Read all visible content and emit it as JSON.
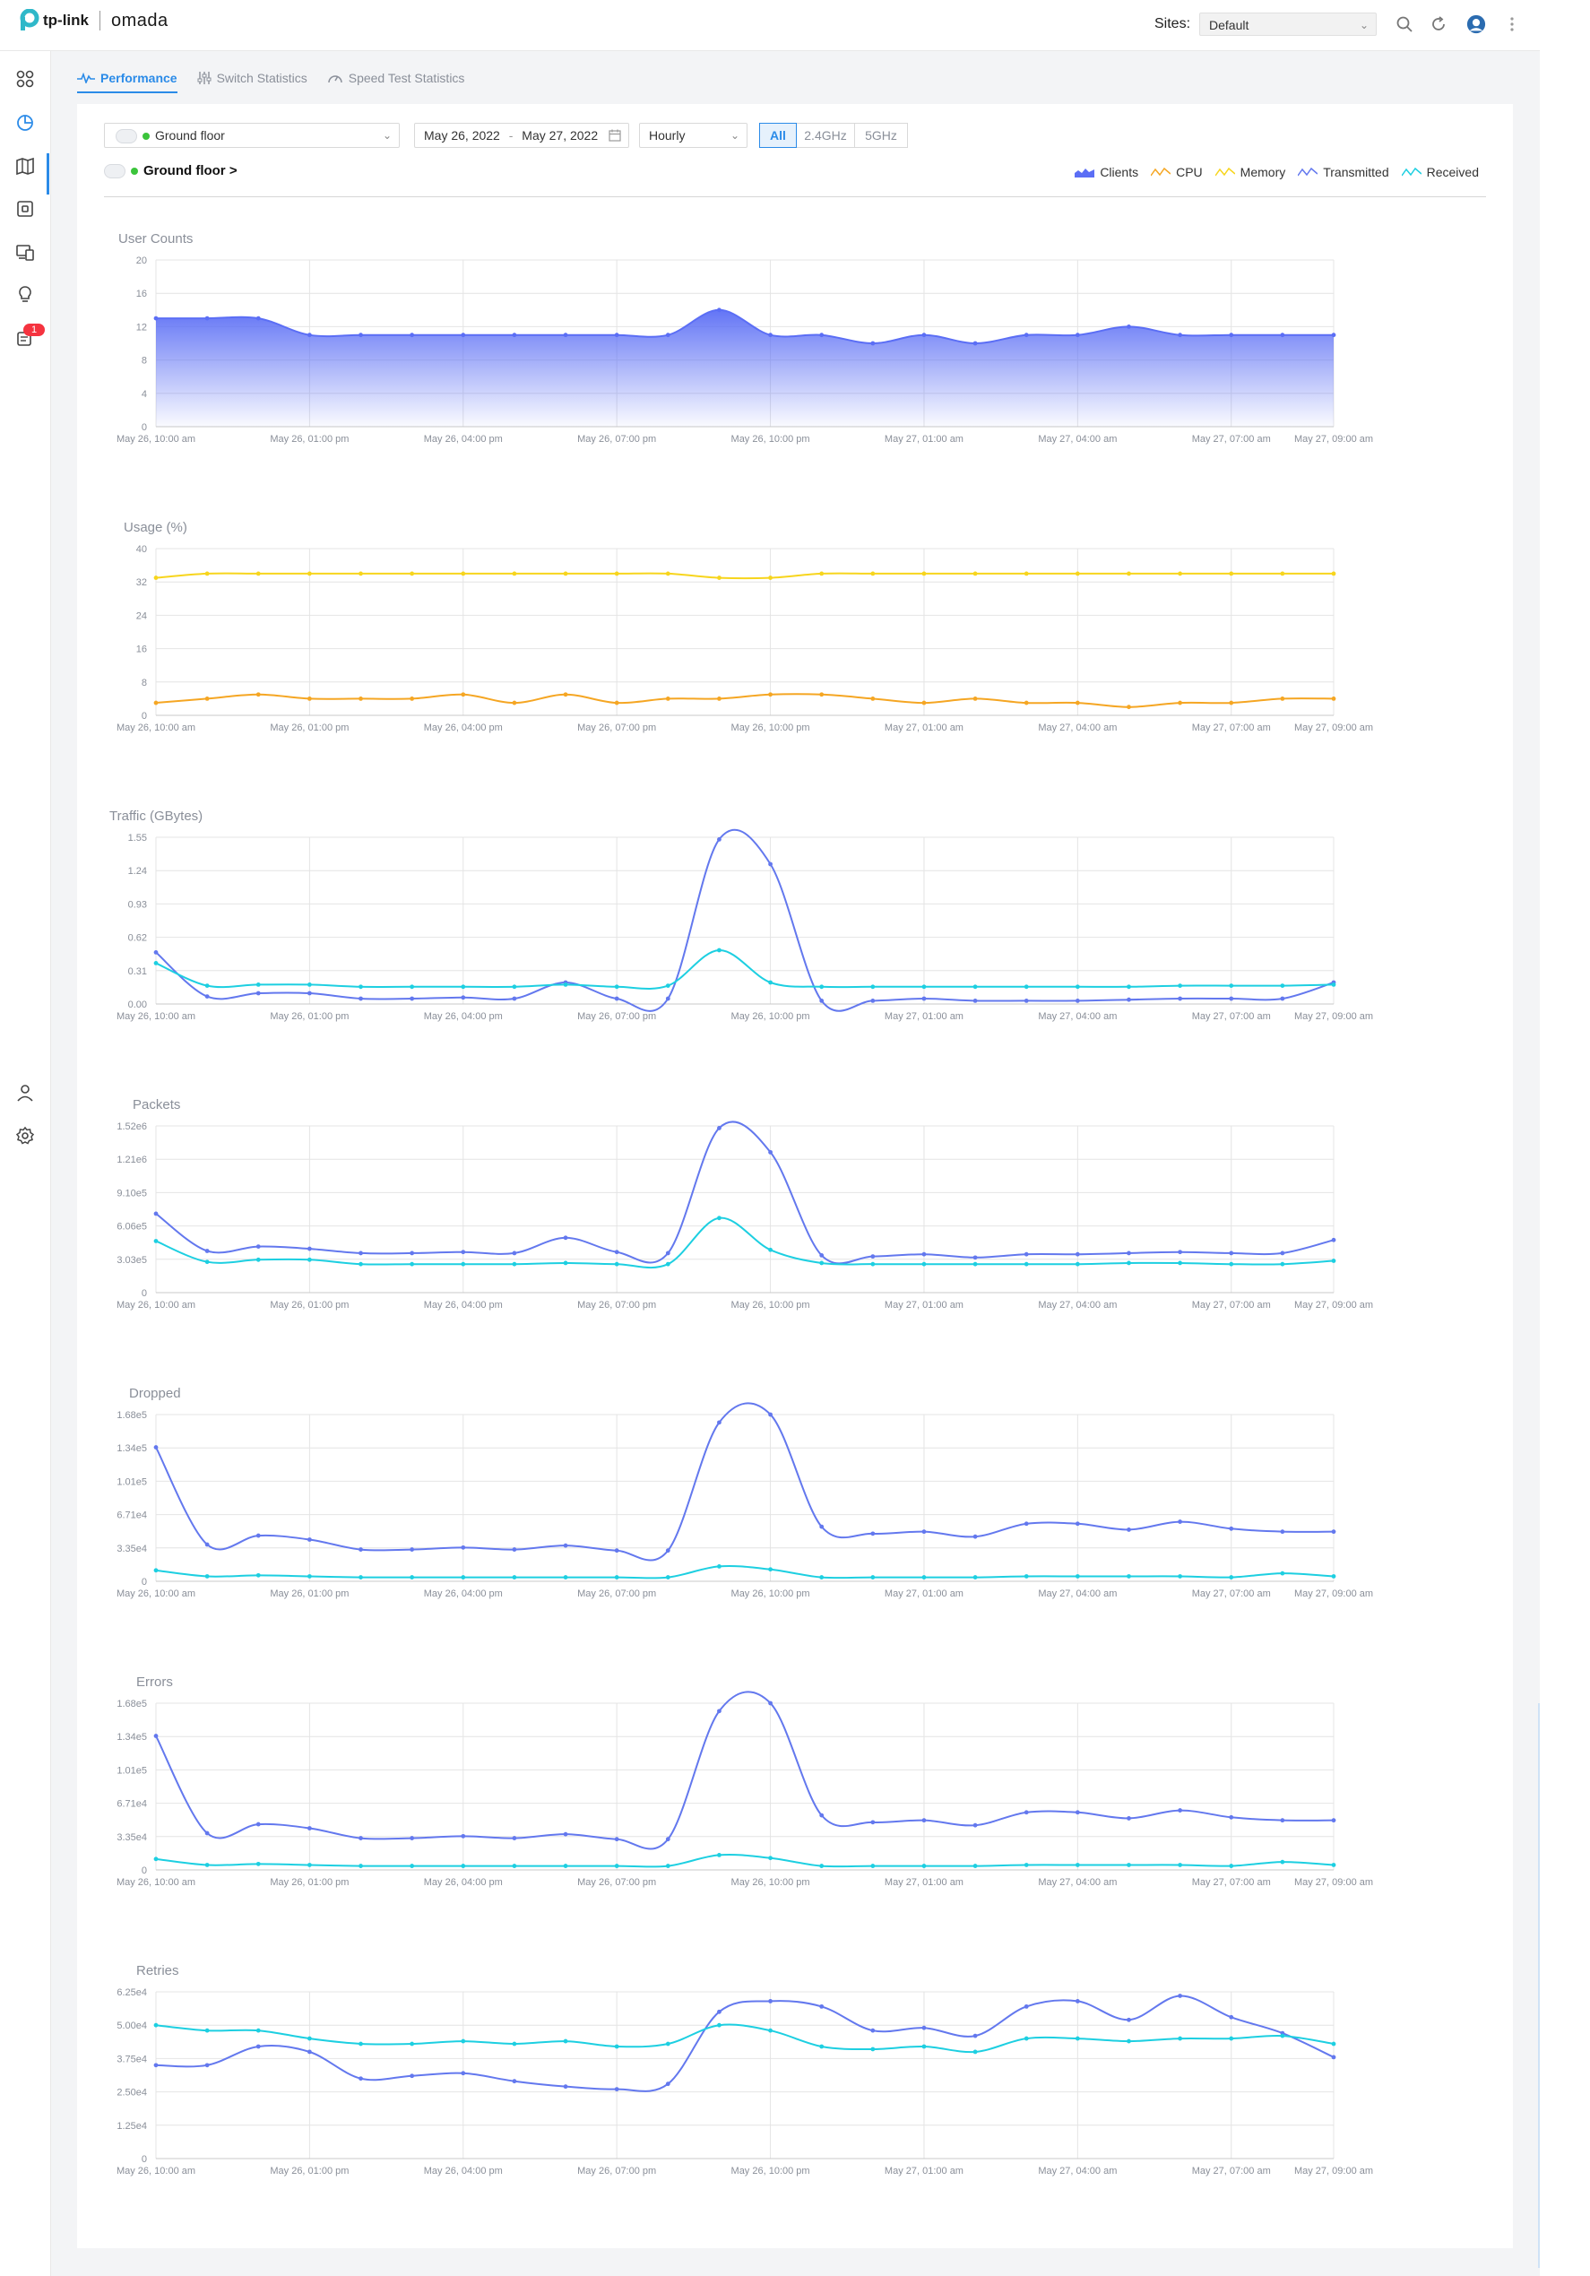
{
  "brand": {
    "vendor": "tp-link",
    "product": "omada"
  },
  "header": {
    "sites_label": "Sites:",
    "site_selected": "Default"
  },
  "sidebar": {
    "badge": "1"
  },
  "tabs": [
    "Performance",
    "Switch Statistics",
    "Speed Test Statistics"
  ],
  "filters": {
    "ap": "Ground floor",
    "date_start": "May 26, 2022",
    "date_sep": "-",
    "date_end": "May 27, 2022",
    "interval": "Hourly",
    "bands": [
      "All",
      "2.4GHz",
      "5GHz"
    ],
    "band_active": "All"
  },
  "ap_title": "Ground floor >",
  "legend": [
    {
      "label": "Clients",
      "color": "#5b6ef5"
    },
    {
      "label": "CPU",
      "color": "#f5a623"
    },
    {
      "label": "Memory",
      "color": "#f7d51d"
    },
    {
      "label": "Transmitted",
      "color": "#6378ee"
    },
    {
      "label": "Received",
      "color": "#1dcfe1"
    }
  ],
  "colors": {
    "accent": "#2b8be8",
    "clients": "#5b6ef5",
    "cpu": "#f5a623",
    "memory": "#f7d51d",
    "transmitted": "#6378ee",
    "received": "#1dcfe1",
    "badge": "#f5333f"
  },
  "chart_data": [
    {
      "type": "area",
      "title": "User Counts",
      "x_tick_labels": [
        "May 26, 10:00 am",
        "May 26, 01:00 pm",
        "May 26, 04:00 pm",
        "May 26, 07:00 pm",
        "May 26, 10:00 pm",
        "May 27, 01:00 am",
        "May 27, 04:00 am",
        "May 27, 07:00 am",
        "May 27, 09:00 am"
      ],
      "y_ticks": [
        "0",
        "4",
        "8",
        "12",
        "16",
        "20"
      ],
      "ylim": [
        0,
        20
      ],
      "series": [
        {
          "name": "Clients",
          "color": "#5b6ef5",
          "values": [
            13,
            13,
            13,
            11,
            11,
            11,
            11,
            11,
            11,
            11,
            11,
            14,
            11,
            11,
            10,
            11,
            10,
            11,
            11,
            12,
            11,
            11,
            11,
            11
          ]
        }
      ]
    },
    {
      "type": "line",
      "title": "Usage (%)",
      "x_tick_labels": [
        "May 26, 10:00 am",
        "May 26, 01:00 pm",
        "May 26, 04:00 pm",
        "May 26, 07:00 pm",
        "May 26, 10:00 pm",
        "May 27, 01:00 am",
        "May 27, 04:00 am",
        "May 27, 07:00 am",
        "May 27, 09:00 am"
      ],
      "y_ticks": [
        "0",
        "8",
        "16",
        "24",
        "32",
        "40"
      ],
      "ylim": [
        0,
        40
      ],
      "series": [
        {
          "name": "Memory",
          "color": "#f7d51d",
          "values": [
            33,
            34,
            34,
            34,
            34,
            34,
            34,
            34,
            34,
            34,
            34,
            33,
            33,
            34,
            34,
            34,
            34,
            34,
            34,
            34,
            34,
            34,
            34,
            34
          ]
        },
        {
          "name": "CPU",
          "color": "#f5a623",
          "values": [
            3,
            4,
            5,
            4,
            4,
            4,
            5,
            3,
            5,
            3,
            4,
            4,
            5,
            5,
            4,
            3,
            4,
            3,
            3,
            2,
            3,
            3,
            4,
            4
          ]
        }
      ]
    },
    {
      "type": "line",
      "title": "Traffic (GBytes)",
      "x_tick_labels": [
        "May 26, 10:00 am",
        "May 26, 01:00 pm",
        "May 26, 04:00 pm",
        "May 26, 07:00 pm",
        "May 26, 10:00 pm",
        "May 27, 01:00 am",
        "May 27, 04:00 am",
        "May 27, 07:00 am",
        "May 27, 09:00 am"
      ],
      "y_ticks": [
        "0.00",
        "0.31",
        "0.62",
        "0.93",
        "1.24",
        "1.55"
      ],
      "ylim": [
        0,
        1.55
      ],
      "series": [
        {
          "name": "Transmitted",
          "color": "#6378ee",
          "values": [
            0.48,
            0.07,
            0.1,
            0.1,
            0.05,
            0.05,
            0.06,
            0.05,
            0.2,
            0.05,
            0.05,
            1.53,
            1.3,
            0.03,
            0.03,
            0.05,
            0.03,
            0.03,
            0.03,
            0.04,
            0.05,
            0.05,
            0.05,
            0.2
          ]
        },
        {
          "name": "Received",
          "color": "#1dcfe1",
          "values": [
            0.38,
            0.17,
            0.18,
            0.18,
            0.16,
            0.16,
            0.16,
            0.16,
            0.18,
            0.16,
            0.17,
            0.5,
            0.2,
            0.16,
            0.16,
            0.16,
            0.16,
            0.16,
            0.16,
            0.16,
            0.17,
            0.17,
            0.17,
            0.18
          ]
        }
      ]
    },
    {
      "type": "line",
      "title": "Packets",
      "x_tick_labels": [
        "May 26, 10:00 am",
        "May 26, 01:00 pm",
        "May 26, 04:00 pm",
        "May 26, 07:00 pm",
        "May 26, 10:00 pm",
        "May 27, 01:00 am",
        "May 27, 04:00 am",
        "May 27, 07:00 am",
        "May 27, 09:00 am"
      ],
      "y_ticks": [
        "0",
        "3.03e5",
        "6.06e5",
        "9.10e5",
        "1.21e6",
        "1.52e6"
      ],
      "ylim": [
        0,
        1520000
      ],
      "series": [
        {
          "name": "Transmitted",
          "color": "#6378ee",
          "values": [
            720000,
            380000,
            420000,
            400000,
            360000,
            360000,
            370000,
            360000,
            500000,
            370000,
            360000,
            1500000,
            1280000,
            340000,
            330000,
            350000,
            320000,
            350000,
            350000,
            360000,
            370000,
            360000,
            360000,
            480000
          ]
        },
        {
          "name": "Received",
          "color": "#1dcfe1",
          "values": [
            470000,
            280000,
            300000,
            300000,
            260000,
            260000,
            260000,
            260000,
            270000,
            260000,
            260000,
            680000,
            390000,
            270000,
            260000,
            260000,
            260000,
            260000,
            260000,
            270000,
            270000,
            260000,
            260000,
            290000
          ]
        }
      ]
    },
    {
      "type": "line",
      "title": "Dropped",
      "x_tick_labels": [
        "May 26, 10:00 am",
        "May 26, 01:00 pm",
        "May 26, 04:00 pm",
        "May 26, 07:00 pm",
        "May 26, 10:00 pm",
        "May 27, 01:00 am",
        "May 27, 04:00 am",
        "May 27, 07:00 am",
        "May 27, 09:00 am"
      ],
      "y_ticks": [
        "0",
        "3.35e4",
        "6.71e4",
        "1.01e5",
        "1.34e5",
        "1.68e5"
      ],
      "ylim": [
        0,
        168000
      ],
      "series": [
        {
          "name": "Transmitted",
          "color": "#6378ee",
          "values": [
            135000,
            37000,
            46000,
            42000,
            32000,
            32000,
            34000,
            32000,
            36000,
            31000,
            31000,
            160000,
            168000,
            55000,
            48000,
            50000,
            45000,
            58000,
            58000,
            52000,
            60000,
            53000,
            50000,
            50000
          ]
        },
        {
          "name": "Received",
          "color": "#1dcfe1",
          "values": [
            11000,
            5000,
            6000,
            5000,
            4000,
            4000,
            4000,
            4000,
            4000,
            4000,
            4000,
            15000,
            12000,
            4000,
            4000,
            4000,
            4000,
            5000,
            5000,
            5000,
            5000,
            4000,
            8000,
            5000
          ]
        }
      ]
    },
    {
      "type": "line",
      "title": "Errors",
      "x_tick_labels": [
        "May 26, 10:00 am",
        "May 26, 01:00 pm",
        "May 26, 04:00 pm",
        "May 26, 07:00 pm",
        "May 26, 10:00 pm",
        "May 27, 01:00 am",
        "May 27, 04:00 am",
        "May 27, 07:00 am",
        "May 27, 09:00 am"
      ],
      "y_ticks": [
        "0",
        "3.35e4",
        "6.71e4",
        "1.01e5",
        "1.34e5",
        "1.68e5"
      ],
      "ylim": [
        0,
        168000
      ],
      "series": [
        {
          "name": "Transmitted",
          "color": "#6378ee",
          "values": [
            135000,
            37000,
            46000,
            42000,
            32000,
            32000,
            34000,
            32000,
            36000,
            31000,
            31000,
            160000,
            168000,
            55000,
            48000,
            50000,
            45000,
            58000,
            58000,
            52000,
            60000,
            53000,
            50000,
            50000
          ]
        },
        {
          "name": "Received",
          "color": "#1dcfe1",
          "values": [
            11000,
            5000,
            6000,
            5000,
            4000,
            4000,
            4000,
            4000,
            4000,
            4000,
            4000,
            15000,
            12000,
            4000,
            4000,
            4000,
            4000,
            5000,
            5000,
            5000,
            5000,
            4000,
            8000,
            5000
          ]
        }
      ]
    },
    {
      "type": "line",
      "title": "Retries",
      "x_tick_labels": [
        "May 26, 10:00 am",
        "May 26, 01:00 pm",
        "May 26, 04:00 pm",
        "May 26, 07:00 pm",
        "May 26, 10:00 pm",
        "May 27, 01:00 am",
        "May 27, 04:00 am",
        "May 27, 07:00 am",
        "May 27, 09:00 am"
      ],
      "y_ticks": [
        "0",
        "1.25e4",
        "2.50e4",
        "3.75e4",
        "5.00e4",
        "6.25e4"
      ],
      "ylim": [
        0,
        62500
      ],
      "series": [
        {
          "name": "Transmitted",
          "color": "#6378ee",
          "values": [
            35000,
            35000,
            42000,
            40000,
            30000,
            31000,
            32000,
            29000,
            27000,
            26000,
            28000,
            55000,
            59000,
            57000,
            48000,
            49000,
            46000,
            57000,
            59000,
            52000,
            61000,
            53000,
            47000,
            38000
          ]
        },
        {
          "name": "Received",
          "color": "#1dcfe1",
          "values": [
            50000,
            48000,
            48000,
            45000,
            43000,
            43000,
            44000,
            43000,
            44000,
            42000,
            43000,
            50000,
            48000,
            42000,
            41000,
            42000,
            40000,
            45000,
            45000,
            44000,
            45000,
            45000,
            46000,
            43000
          ]
        }
      ]
    }
  ]
}
